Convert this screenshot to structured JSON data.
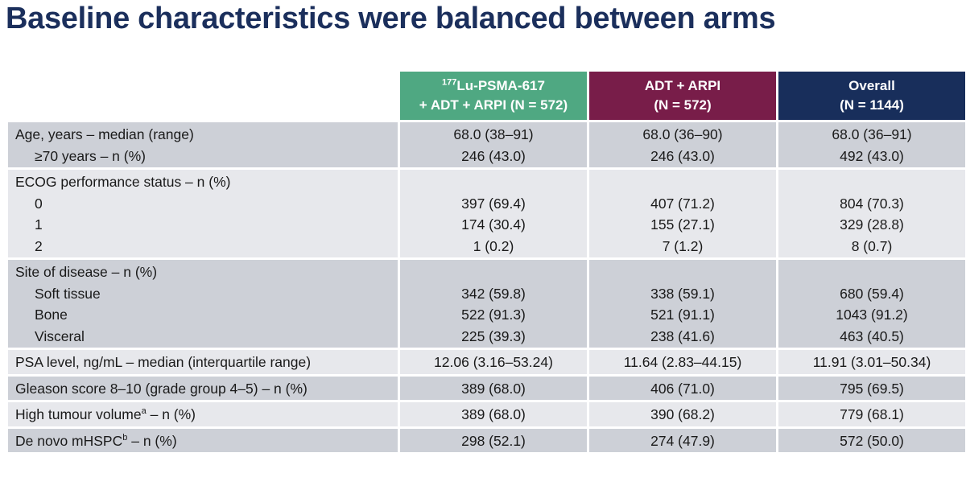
{
  "title": "Baseline characteristics were balanced between arms",
  "columns": [
    {
      "line1_sup": "177",
      "line1": "Lu-PSMA-617",
      "line2": "+ ADT + ARPI (N = 572)",
      "color": "#4fa882"
    },
    {
      "line1": "ADT + ARPI",
      "line2": "(N = 572)",
      "color": "#781d49"
    },
    {
      "line1": "Overall",
      "line2": "(N = 1144)",
      "color": "#182e5b"
    }
  ],
  "rows": [
    {
      "lines": [
        {
          "label": "Age, years – median (range)",
          "v": [
            "68.0 (38–91)",
            "68.0 (36–90)",
            "68.0 (36–91)"
          ]
        },
        {
          "label": "≥70 years – n (%)",
          "indent": true,
          "v": [
            "246 (43.0)",
            "246 (43.0)",
            "492 (43.0)"
          ]
        }
      ]
    },
    {
      "lines": [
        {
          "label": "ECOG performance status – n (%)",
          "v": [
            "",
            "",
            ""
          ]
        },
        {
          "label": "0",
          "indent": true,
          "v": [
            "397 (69.4)",
            "407 (71.2)",
            "804 (70.3)"
          ]
        },
        {
          "label": "1",
          "indent": true,
          "v": [
            "174 (30.4)",
            "155 (27.1)",
            "329 (28.8)"
          ]
        },
        {
          "label": "2",
          "indent": true,
          "v": [
            "1 (0.2)",
            "7 (1.2)",
            "8 (0.7)"
          ]
        }
      ]
    },
    {
      "lines": [
        {
          "label": "Site of disease – n (%)",
          "v": [
            "",
            "",
            ""
          ]
        },
        {
          "label": "Soft tissue",
          "indent": true,
          "v": [
            "342 (59.8)",
            "338 (59.1)",
            "680 (59.4)"
          ]
        },
        {
          "label": "Bone",
          "indent": true,
          "v": [
            "522 (91.3)",
            "521 (91.1)",
            "1043 (91.2)"
          ]
        },
        {
          "label": "Visceral",
          "indent": true,
          "v": [
            "225 (39.3)",
            "238 (41.6)",
            "463 (40.5)"
          ]
        }
      ]
    },
    {
      "lines": [
        {
          "label": "PSA level, ng/mL – median (interquartile range)",
          "v": [
            "12.06 (3.16–53.24)",
            "11.64 (2.83–44.15)",
            "11.91 (3.01–50.34)"
          ]
        }
      ]
    },
    {
      "lines": [
        {
          "label": "Gleason score 8–10 (grade group 4–5) – n (%)",
          "v": [
            "389 (68.0)",
            "406 (71.0)",
            "795 (69.5)"
          ]
        }
      ]
    },
    {
      "lines": [
        {
          "label": "High tumour volume",
          "sup": "a",
          "label_after": " – n (%)",
          "v": [
            "389 (68.0)",
            "390 (68.2)",
            "779 (68.1)"
          ]
        }
      ]
    },
    {
      "lines": [
        {
          "label": "De novo mHSPC",
          "sup": "b",
          "label_after": " – n (%)",
          "v": [
            "298 (52.1)",
            "274 (47.9)",
            "572 (50.0)"
          ]
        }
      ]
    }
  ]
}
